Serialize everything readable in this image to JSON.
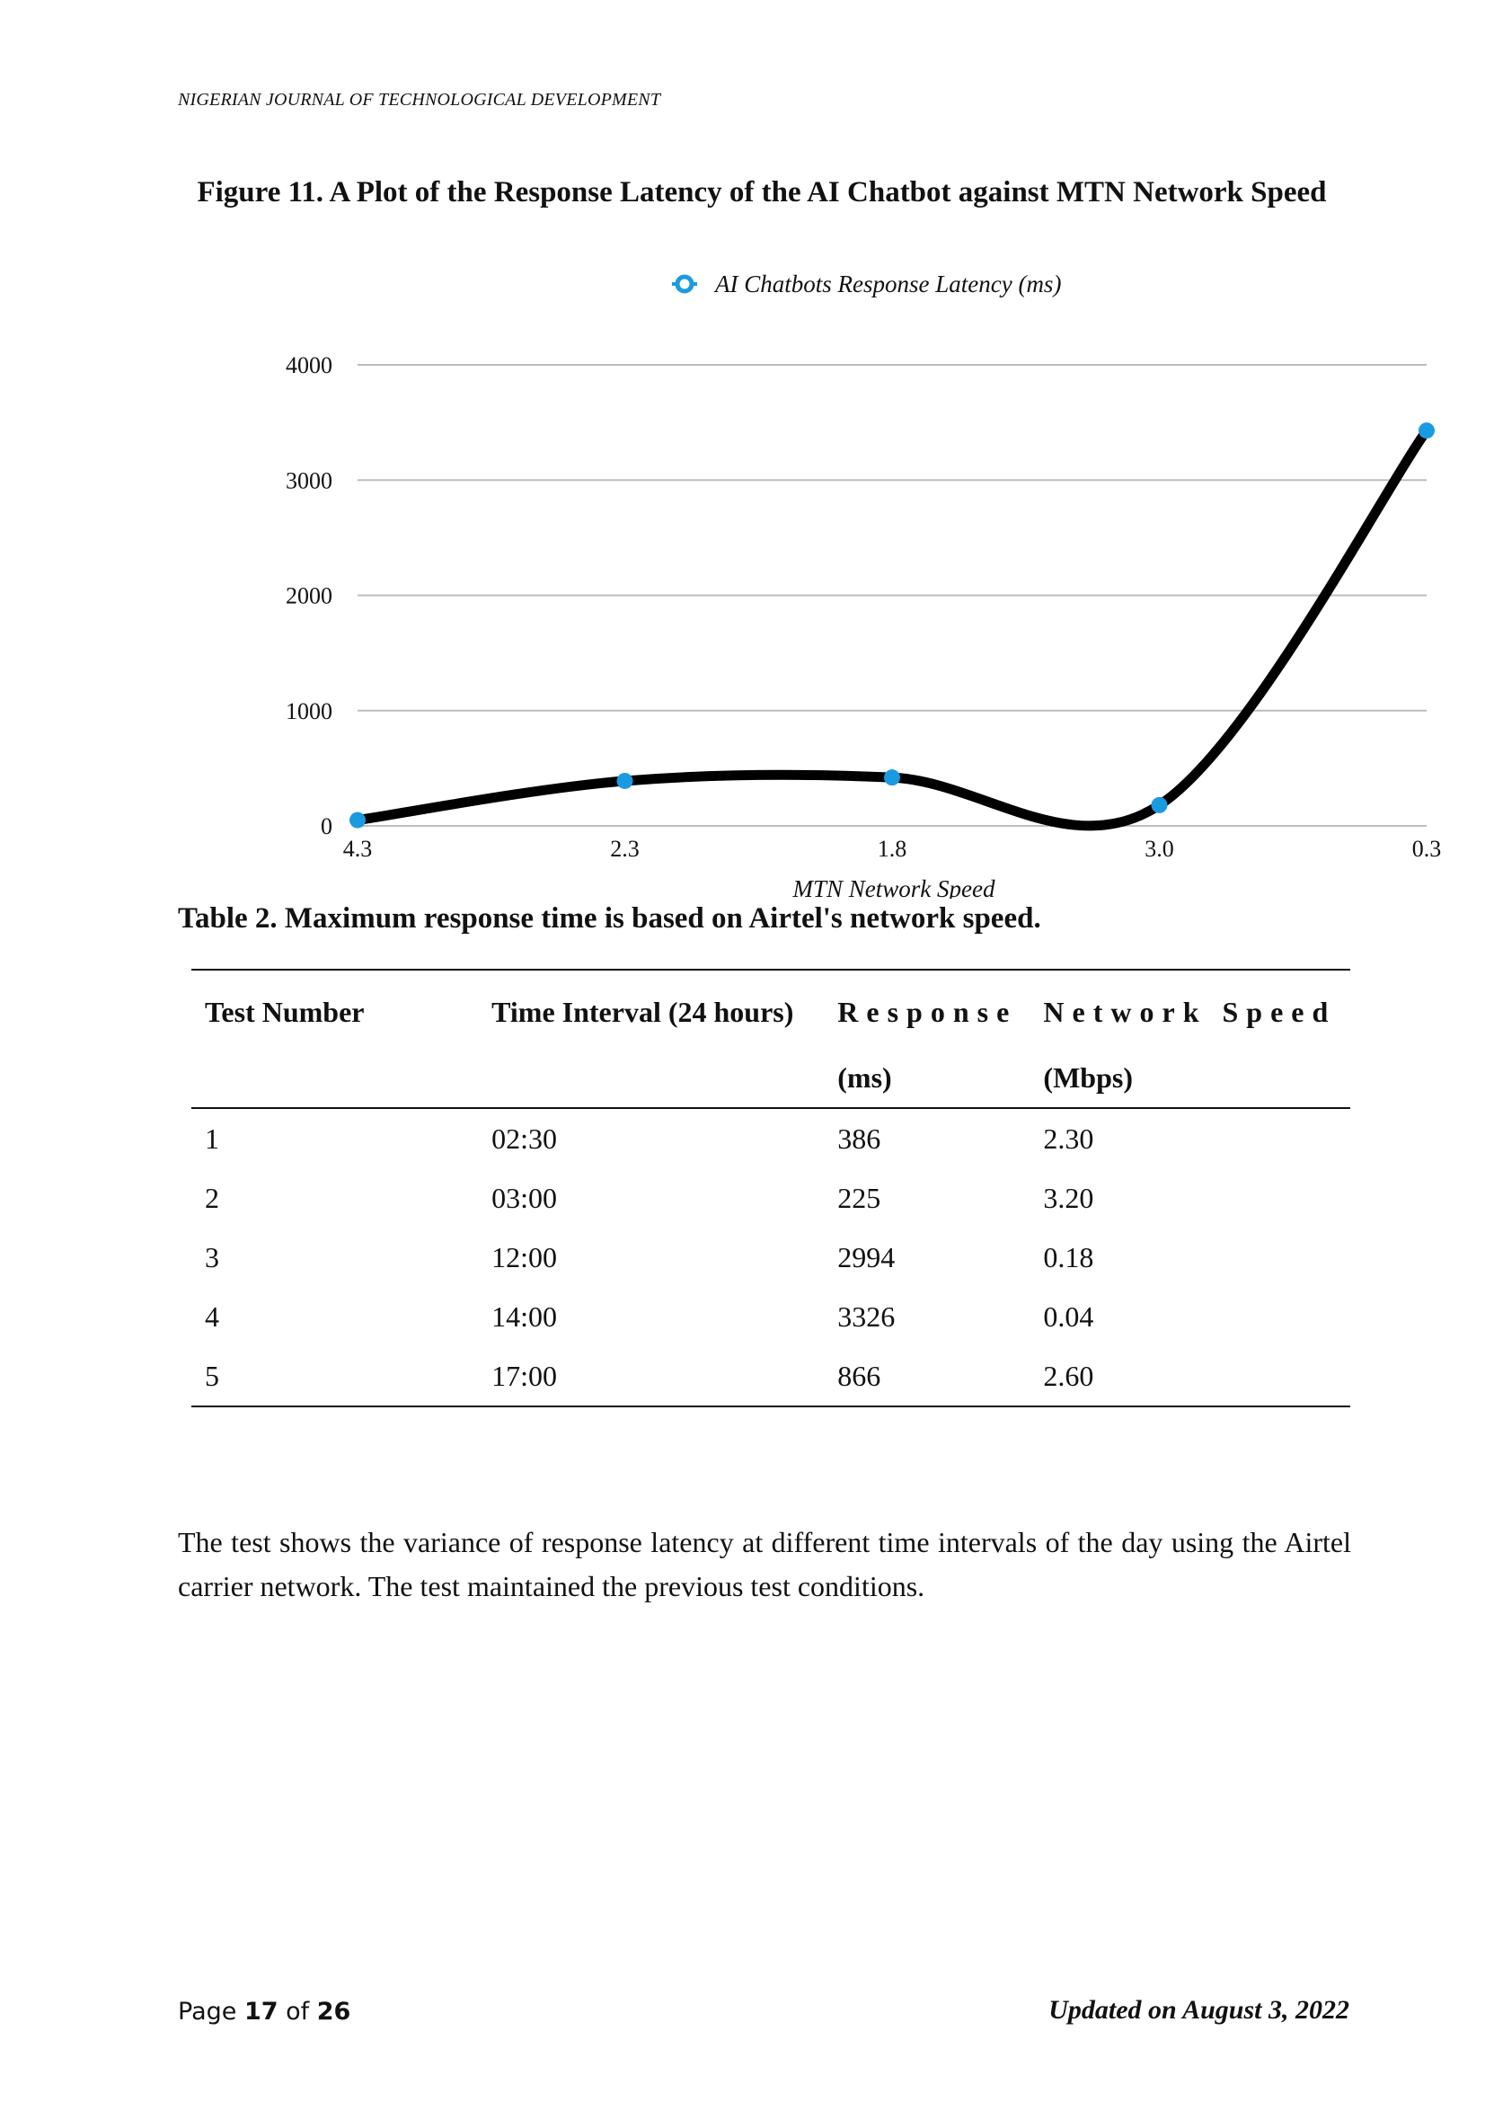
{
  "header": {
    "journal": "NIGERIAN JOURNAL OF TECHNOLOGICAL DEVELOPMENT"
  },
  "figure": {
    "caption": "Figure 11. A Plot of the Response Latency of the AI Chatbot against MTN Network Speed"
  },
  "chart_data": {
    "type": "line",
    "categories": [
      "4.3",
      "2.3",
      "1.8",
      "3.0",
      "0.3"
    ],
    "series": [
      {
        "name": "AI Chatbots Response Latency (ms)",
        "values": [
          50,
          390,
          420,
          180,
          3430
        ],
        "color": "#1a9be0",
        "line_color": "#000000"
      }
    ],
    "xlabel": "MTN Network Speed",
    "ylabel": "",
    "ylim": [
      0,
      4000
    ],
    "yticks": [
      0,
      1000,
      2000,
      3000,
      4000
    ],
    "grid": true,
    "smooth": true,
    "legend": "top-center"
  },
  "table": {
    "caption": "Table 2. Maximum response time is based on Airtel's network speed.",
    "headers": [
      {
        "line1": "Test Number",
        "line2": ""
      },
      {
        "line1": "Time Interval (24 hours)",
        "line2": ""
      },
      {
        "line1": "Response",
        "line2": "(ms)"
      },
      {
        "line1": "Network Speed",
        "line2": "(Mbps)"
      }
    ],
    "rows": [
      [
        "1",
        "02:30",
        "386",
        "2.30"
      ],
      [
        "2",
        "03:00",
        "225",
        "3.20"
      ],
      [
        "3",
        "12:00",
        "2994",
        "0.18"
      ],
      [
        "4",
        "14:00",
        "3326",
        "0.04"
      ],
      [
        "5",
        "17:00",
        "866",
        "2.60"
      ]
    ]
  },
  "paragraph": "The test shows the variance of response latency at different time intervals of the day using the Airtel carrier network. The test maintained the previous test conditions.",
  "footer": {
    "page_prefix": "Page",
    "page_current": "17",
    "page_of": "of",
    "page_total": "26",
    "updated": "Updated on August 3, 2022"
  }
}
